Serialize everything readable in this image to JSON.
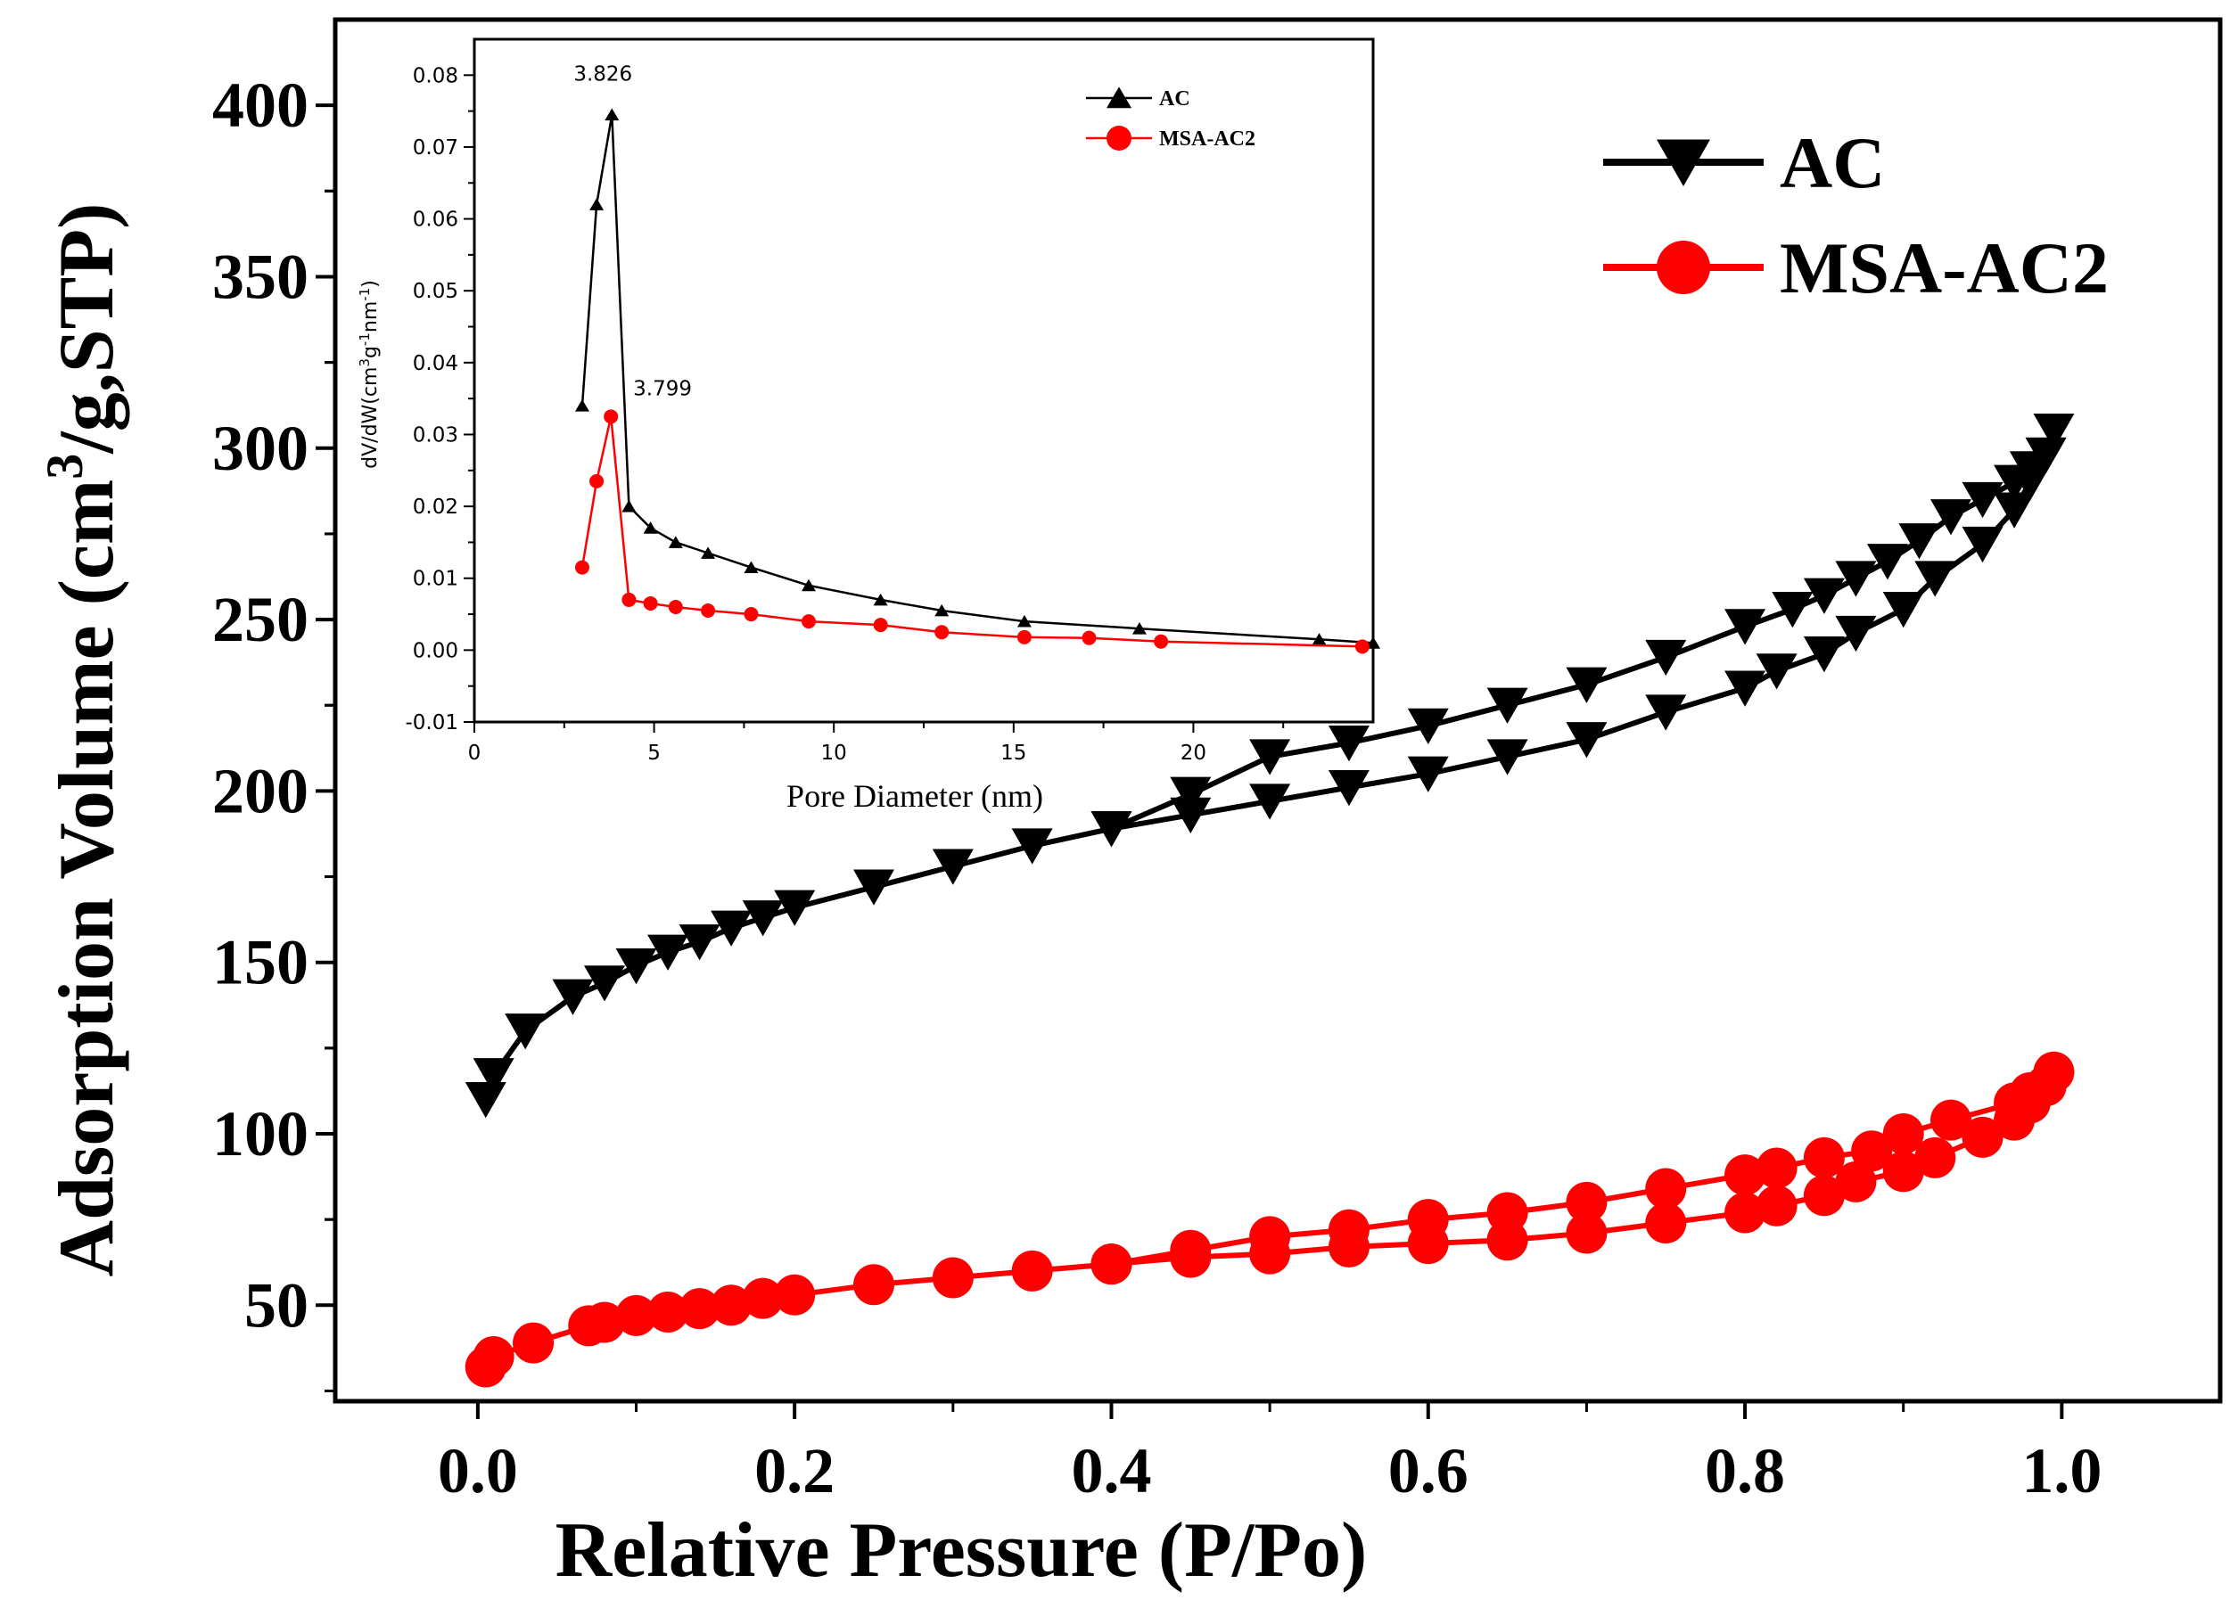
{
  "chart_data": [
    {
      "type": "line",
      "title": "",
      "xlabel": "Relative Pressure (P/Po)",
      "ylabel_parts": [
        "Adsorption Volume (cm",
        "3",
        "/g,STP)"
      ],
      "xlim": [
        -0.09,
        1.1
      ],
      "ylim": [
        22,
        425
      ],
      "xticks": [
        0.0,
        0.2,
        0.4,
        0.6,
        0.8,
        1.0
      ],
      "xtick_labels": [
        "0.0",
        "0.2",
        "0.4",
        "0.6",
        "0.8",
        "1.0"
      ],
      "yticks": [
        50,
        100,
        150,
        200,
        250,
        300,
        350,
        400
      ],
      "ytick_labels": [
        "50",
        "100",
        "150",
        "200",
        "250",
        "300",
        "350",
        "400"
      ],
      "legend_position": "top-right",
      "series": [
        {
          "name": "AC",
          "color": "#000000",
          "marker": "triangle-down",
          "x": [
            0.005,
            0.01,
            0.03,
            0.06,
            0.08,
            0.1,
            0.12,
            0.14,
            0.16,
            0.18,
            0.2,
            0.25,
            0.3,
            0.35,
            0.4,
            0.45,
            0.5,
            0.55,
            0.6,
            0.65,
            0.7,
            0.75,
            0.8,
            0.82,
            0.85,
            0.87,
            0.9,
            0.92,
            0.95,
            0.97,
            0.98,
            0.99,
            0.995,
            0.99,
            0.98,
            0.97,
            0.95,
            0.93,
            0.91,
            0.89,
            0.87,
            0.85,
            0.83,
            0.8,
            0.75,
            0.7,
            0.65,
            0.6,
            0.55,
            0.5,
            0.45,
            0.4
          ],
          "y": [
            110,
            117,
            130,
            140,
            144,
            149,
            153,
            156,
            160,
            163,
            166,
            172,
            178,
            184,
            189,
            193,
            197,
            201,
            205,
            210,
            215,
            223,
            230,
            235,
            240,
            246,
            253,
            262,
            272,
            282,
            290,
            298,
            305,
            298,
            294,
            290,
            285,
            280,
            273,
            267,
            262,
            257,
            253,
            248,
            239,
            231,
            225,
            219,
            214,
            210,
            199,
            189
          ]
        },
        {
          "name": "MSA-AC2",
          "color": "#ff0000",
          "marker": "circle",
          "x": [
            0.005,
            0.01,
            0.035,
            0.07,
            0.08,
            0.1,
            0.12,
            0.14,
            0.16,
            0.18,
            0.2,
            0.25,
            0.3,
            0.35,
            0.4,
            0.45,
            0.5,
            0.55,
            0.6,
            0.65,
            0.7,
            0.75,
            0.8,
            0.82,
            0.85,
            0.87,
            0.9,
            0.92,
            0.95,
            0.97,
            0.98,
            0.99,
            0.995,
            0.99,
            0.98,
            0.97,
            0.93,
            0.9,
            0.88,
            0.85,
            0.82,
            0.8,
            0.75,
            0.7,
            0.65,
            0.6,
            0.55,
            0.5,
            0.45,
            0.4
          ],
          "y": [
            32,
            35,
            39,
            44,
            45,
            47,
            48,
            49,
            50,
            52,
            53,
            56,
            58,
            60,
            62,
            64,
            65,
            67,
            68,
            69,
            71,
            74,
            77,
            79,
            82,
            86,
            89,
            93,
            99,
            104,
            109,
            114,
            118,
            114,
            112,
            109,
            104,
            100,
            95,
            93,
            90,
            88,
            84,
            80,
            77,
            75,
            72,
            70,
            66,
            62
          ]
        }
      ]
    },
    {
      "type": "line",
      "title": "",
      "xlabel": "Pore Diameter (nm)",
      "ylabel": "dV/dW(cm3g-1nm-1)",
      "ylabel_parts": [
        "dV/dW(cm",
        "3",
        "g",
        "-1",
        "nm",
        "-1",
        ")"
      ],
      "xlim": [
        0,
        25
      ],
      "ylim": [
        -0.01,
        0.085
      ],
      "xticks": [
        0,
        5,
        10,
        15,
        20
      ],
      "xtick_labels": [
        "0",
        "5",
        "10",
        "15",
        "20"
      ],
      "yticks": [
        -0.01,
        0.0,
        0.01,
        0.02,
        0.03,
        0.04,
        0.05,
        0.06,
        0.07,
        0.08
      ],
      "ytick_labels": [
        "-0.01",
        "0.00",
        "0.01",
        "0.02",
        "0.03",
        "0.04",
        "0.05",
        "0.06",
        "0.07",
        "0.08"
      ],
      "legend_position": "top-right",
      "annotations": [
        {
          "text": "3.826",
          "x": 3.826,
          "y": 0.0745
        },
        {
          "text": "3.799",
          "x": 3.799,
          "y": 0.0325
        }
      ],
      "series": [
        {
          "name": "AC",
          "color": "#000000",
          "marker": "triangle-up",
          "x": [
            3.0,
            3.4,
            3.826,
            4.3,
            4.9,
            5.6,
            6.5,
            7.7,
            9.3,
            11.3,
            13.0,
            15.3,
            18.5,
            23.5,
            25.0
          ],
          "y": [
            0.034,
            0.062,
            0.0745,
            0.02,
            0.017,
            0.015,
            0.0135,
            0.0115,
            0.009,
            0.007,
            0.0055,
            0.004,
            0.003,
            0.0015,
            0.001
          ]
        },
        {
          "name": "MSA-AC2",
          "color": "#ff0000",
          "marker": "circle",
          "x": [
            3.0,
            3.4,
            3.799,
            4.3,
            4.9,
            5.6,
            6.5,
            7.7,
            9.3,
            11.3,
            13.0,
            15.3,
            17.1,
            19.1,
            24.7
          ],
          "y": [
            0.0115,
            0.0235,
            0.0325,
            0.007,
            0.0065,
            0.006,
            0.0055,
            0.005,
            0.004,
            0.0035,
            0.0025,
            0.0018,
            0.0017,
            0.0012,
            0.0005
          ]
        }
      ]
    }
  ]
}
